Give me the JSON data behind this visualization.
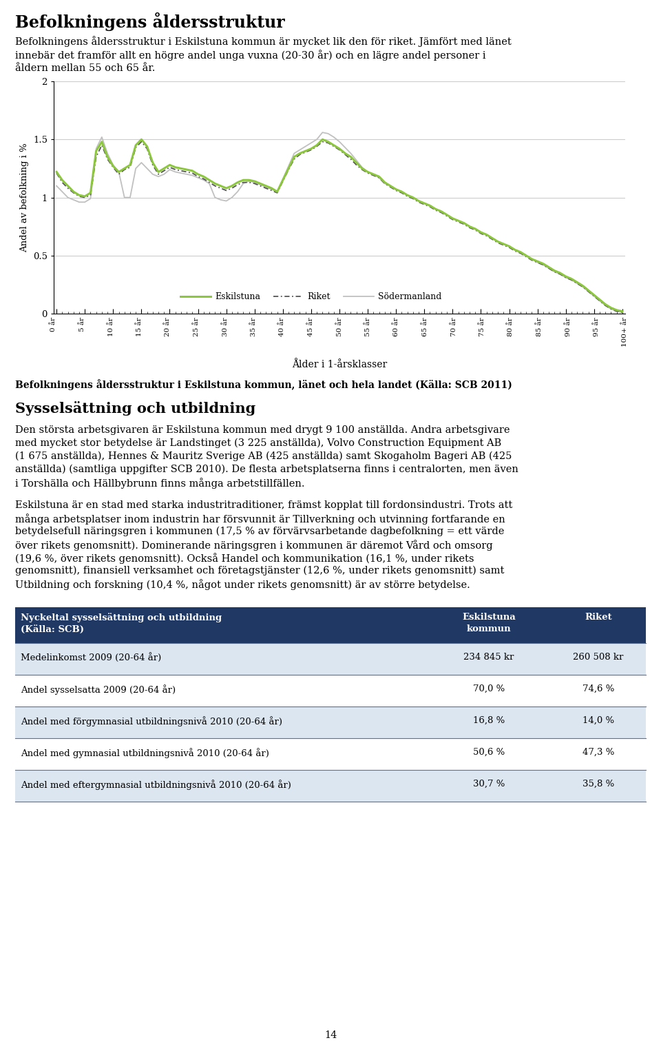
{
  "title": "Befolkningens åldersstruktur",
  "intro_text": "Befolkningens åldersstruktur i Eskilstuna kommun är mycket lik den för riket. Jämfört med länet innebär det framför allt en högre andel unga vuxna (20-30 år) och en lägre andel personer i åldern mellan 55 och 65 år.",
  "ylabel": "Andel av befolkning i %",
  "xlabel": "Ålder i 1-årsklasser",
  "caption": "Befolkningens åldersstruktur i Eskilstuna kommun, länet och hela landet (Källa: SCB 2011)",
  "section2_title": "Sysselsättning och utbildning",
  "section2_para1": "Den största arbetsgivaren är Eskilstuna kommun med drygt 9 100 anställda. Andra arbetsgivare med mycket stor betydelse är Landstinget (3 225 anställda), Volvo Construction Equipment AB (1 675 anställda), Hennes & Mauritz Sverige AB (425 anställda) samt Skogaholm Bageri AB (425 anställda) (samtliga uppgifter SCB 2010). De flesta arbetsplatserna finns i centralorten, men även i Torshälla och Hällbybrunn finns många arbetstillfällen.",
  "section2_para2": "Eskilstuna är en stad med starka industritraditioner, främst kopplat till fordonsindustri. Trots att många arbetsplatser inom industrin har försvunnit är Tillverkning och utvinning fortfarande en betydelsefull näringsgren i kommunen (17,5 % av förvärvsarbetande dagbefolkning = ett värde över rikets genomsnitt). Dominerande näringsgren i kommunen är däremot Vård och omsorg (19,6 %, över rikets genomsnitt). Också Handel och kommunikation (16,1 %, under rikets genomsnitt), finansiell verksamhet och företagstjänster (12,6 %, under rikets genomsnitt) samt Utbildning och forskning (10,4 %, något under rikets genomsnitt) är av större betydelse.",
  "table_header": [
    "Nyckeltal sysselsättning och utbildning\n(Källa: SCB)",
    "Eskilstuna\nkommun",
    "Riket"
  ],
  "table_rows": [
    [
      "Medelinkomst 2009 (20-64 år)",
      "234 845 kr",
      "260 508 kr"
    ],
    [
      "Andel sysselsatta 2009 (20-64 år)",
      "70,0 %",
      "74,6 %"
    ],
    [
      "Andel med förgymnasial utbildningsnivå 2010 (20-64 år)",
      "16,8 %",
      "14,0 %"
    ],
    [
      "Andel med gymnasial utbildningsnivå 2010 (20-64 år)",
      "50,6 %",
      "47,3 %"
    ],
    [
      "Andel med eftergymnasial utbildningsnivå 2010 (20-64 år)",
      "30,7 %",
      "35,8 %"
    ]
  ],
  "page_number": "14",
  "eskilstuna_color": "#8DC63F",
  "riket_color": "#808080",
  "sodermanland_color": "#C0C0C0",
  "background_color": "#ffffff",
  "x_tick_labels": [
    "0 år",
    "5 år",
    "10 år",
    "15 år",
    "20 år",
    "25 år",
    "30 år",
    "35 år",
    "40 år",
    "45 år",
    "50 år",
    "55 år",
    "60 år",
    "65 år",
    "70 år",
    "75 år",
    "80 år",
    "85 år",
    "90 år",
    "95 år",
    "100+ år"
  ],
  "eskilstuna_y": [
    1.22,
    1.15,
    1.1,
    1.05,
    1.02,
    1.01,
    1.04,
    1.4,
    1.48,
    1.35,
    1.27,
    1.22,
    1.25,
    1.28,
    1.45,
    1.5,
    1.44,
    1.3,
    1.22,
    1.25,
    1.28,
    1.26,
    1.25,
    1.24,
    1.23,
    1.2,
    1.18,
    1.15,
    1.12,
    1.1,
    1.08,
    1.1,
    1.13,
    1.15,
    1.15,
    1.14,
    1.12,
    1.1,
    1.08,
    1.05,
    1.15,
    1.25,
    1.35,
    1.38,
    1.4,
    1.42,
    1.45,
    1.5,
    1.48,
    1.45,
    1.42,
    1.38,
    1.35,
    1.3,
    1.25,
    1.22,
    1.2,
    1.18,
    1.13,
    1.1,
    1.07,
    1.05,
    1.02,
    1.0,
    0.97,
    0.95,
    0.93,
    0.9,
    0.88,
    0.85,
    0.82,
    0.8,
    0.78,
    0.75,
    0.73,
    0.7,
    0.68,
    0.65,
    0.62,
    0.6,
    0.58,
    0.55,
    0.53,
    0.5,
    0.47,
    0.45,
    0.43,
    0.4,
    0.37,
    0.35,
    0.32,
    0.3,
    0.27,
    0.24,
    0.2,
    0.16,
    0.12,
    0.08,
    0.05,
    0.03,
    0.02
  ],
  "riket_y": [
    1.21,
    1.13,
    1.08,
    1.04,
    1.01,
    1.0,
    1.02,
    1.35,
    1.45,
    1.33,
    1.26,
    1.2,
    1.24,
    1.26,
    1.43,
    1.48,
    1.42,
    1.28,
    1.2,
    1.23,
    1.26,
    1.24,
    1.23,
    1.22,
    1.21,
    1.18,
    1.16,
    1.13,
    1.1,
    1.08,
    1.06,
    1.08,
    1.11,
    1.13,
    1.13,
    1.12,
    1.1,
    1.08,
    1.06,
    1.04,
    1.14,
    1.24,
    1.33,
    1.37,
    1.39,
    1.41,
    1.44,
    1.48,
    1.47,
    1.44,
    1.41,
    1.37,
    1.33,
    1.28,
    1.24,
    1.21,
    1.19,
    1.17,
    1.12,
    1.09,
    1.06,
    1.04,
    1.01,
    0.99,
    0.96,
    0.94,
    0.92,
    0.89,
    0.87,
    0.84,
    0.81,
    0.79,
    0.77,
    0.74,
    0.72,
    0.69,
    0.67,
    0.64,
    0.61,
    0.59,
    0.57,
    0.54,
    0.52,
    0.49,
    0.46,
    0.44,
    0.42,
    0.39,
    0.36,
    0.34,
    0.31,
    0.29,
    0.26,
    0.23,
    0.19,
    0.15,
    0.11,
    0.07,
    0.04,
    0.02,
    0.01
  ],
  "sodermanland_y": [
    1.1,
    1.05,
    1.0,
    0.98,
    0.96,
    0.96,
    0.99,
    1.42,
    1.52,
    1.38,
    1.28,
    1.22,
    1.0,
    1.0,
    1.25,
    1.3,
    1.25,
    1.2,
    1.18,
    1.2,
    1.24,
    1.22,
    1.21,
    1.2,
    1.19,
    1.17,
    1.15,
    1.12,
    1.0,
    0.98,
    0.97,
    1.0,
    1.05,
    1.12,
    1.14,
    1.13,
    1.11,
    1.09,
    1.07,
    1.05,
    1.16,
    1.27,
    1.38,
    1.41,
    1.44,
    1.47,
    1.5,
    1.56,
    1.55,
    1.52,
    1.48,
    1.43,
    1.38,
    1.32,
    1.26,
    1.22,
    1.2,
    1.17,
    1.12,
    1.1,
    1.07,
    1.05,
    1.02,
    1.0,
    0.97,
    0.95,
    0.93,
    0.9,
    0.88,
    0.85,
    0.82,
    0.8,
    0.78,
    0.75,
    0.73,
    0.7,
    0.68,
    0.65,
    0.62,
    0.6,
    0.58,
    0.55,
    0.52,
    0.5,
    0.47,
    0.44,
    0.42,
    0.39,
    0.36,
    0.34,
    0.31,
    0.29,
    0.26,
    0.23,
    0.19,
    0.15,
    0.11,
    0.07,
    0.04,
    0.02,
    0.01
  ],
  "table_header_color": "#1f3864",
  "table_alt_color": "#dce6f1",
  "table_border_color": "#4472c4"
}
